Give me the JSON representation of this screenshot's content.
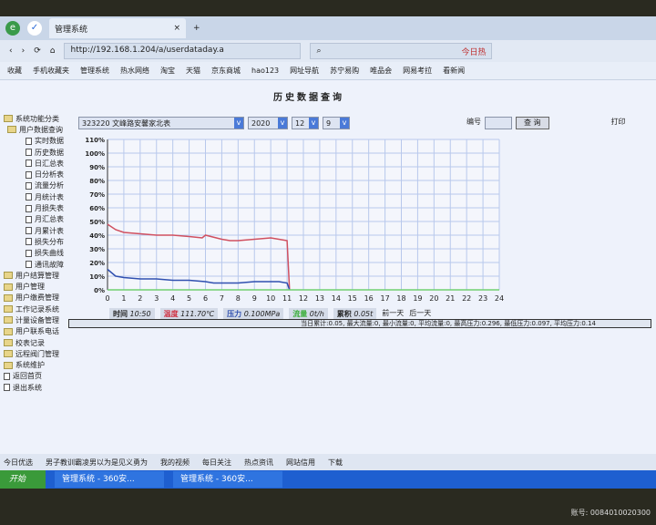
{
  "browser": {
    "tab_title": "管理系统",
    "url": "http://192.168.1.204/a/userdataday.a",
    "search_brand": "今日热",
    "bookmarks": [
      "收藏",
      "手机收藏夹",
      "管理系统",
      "热水网络",
      "淘宝",
      "天猫",
      "京东商城",
      "hao123",
      "网址导航",
      "苏宁易购",
      "唯品会",
      "网易考拉",
      "看新闻"
    ]
  },
  "page": {
    "title": "历史数据查询",
    "tree": {
      "root": "系统功能分类",
      "group": "用户数据查询",
      "items": [
        "实时数据",
        "历史数据",
        "日汇总表",
        "日分析表",
        "流量分析",
        "月统计表",
        "月损失表",
        "月汇总表",
        "月累计表",
        "损失分布",
        "损失曲线",
        "通讯故障"
      ],
      "folders": [
        "用户结算管理",
        "用户管理",
        "用户缴费管理",
        "工作记录系统",
        "计量设备管理",
        "用户联系电话",
        "校表记录",
        "远程阀门管理",
        "系统维护"
      ],
      "docs": [
        "返回首页",
        "退出系统"
      ]
    },
    "filter": {
      "meter": "323220 文峰路安馨家北表",
      "year": "2020",
      "month": "12",
      "day": "9",
      "label_no": "编号",
      "query": "查 询",
      "print": "打印"
    },
    "info": {
      "time_label": "时间",
      "time": "10:50",
      "temp_label": "温度",
      "temp": "111.70℃",
      "pressure_label": "压力",
      "pressure": "0.100MPa",
      "flow_label": "流量",
      "flow": "0t/h",
      "cumulative_label": "累积",
      "cumulative": "0.05t",
      "prev_day": "前一天",
      "next_day": "后一天"
    },
    "summary": "当日累计:0.05, 最大流量:0, 最小流量:0, 平均流量:0, 最高压力:0.296, 最低压力:0.097, 平均压力:0.14"
  },
  "status_bar": [
    "今日优选",
    "男子教训霸凌男以为是见义勇为",
    "我的视频",
    "每日关注",
    "热点资讯",
    "网站信用",
    "下载"
  ],
  "taskbar": {
    "start": "开始",
    "tasks": [
      "管理系统 - 360安...",
      "管理系统 - 360安..."
    ]
  },
  "watermark": "账号: 0084010020300",
  "chart_data": {
    "type": "line",
    "xlim": [
      0,
      24
    ],
    "ylim": [
      0,
      110
    ],
    "x_ticks": [
      0,
      1,
      2,
      3,
      4,
      5,
      6,
      7,
      8,
      9,
      10,
      11,
      12,
      13,
      14,
      15,
      16,
      17,
      18,
      19,
      20,
      21,
      22,
      23,
      24
    ],
    "y_ticks": [
      "0%",
      "10%",
      "20%",
      "30%",
      "40%",
      "50%",
      "60%",
      "70%",
      "80%",
      "90%",
      "100%",
      "110%"
    ],
    "grid": true,
    "series": [
      {
        "color": "#d05060",
        "x": [
          0,
          0.5,
          1,
          2,
          3,
          4,
          5,
          5.8,
          6,
          7,
          7.5,
          8,
          9,
          10,
          10.5,
          11,
          11.15
        ],
        "y": [
          48,
          44,
          42,
          41,
          40,
          40,
          39,
          38,
          40,
          37,
          36,
          36,
          37,
          38,
          37,
          36,
          0
        ]
      },
      {
        "color": "#3050b0",
        "x": [
          0,
          0.5,
          1,
          2,
          3,
          4,
          5,
          6,
          6.5,
          7,
          8,
          9,
          10,
          10.5,
          11,
          11.15
        ],
        "y": [
          15,
          10,
          9,
          8,
          8,
          7,
          7,
          6,
          5,
          5,
          5,
          6,
          6,
          6,
          5,
          0
        ]
      },
      {
        "color": "#70d070",
        "x": [
          0,
          24
        ],
        "y": [
          0,
          0
        ]
      }
    ]
  }
}
